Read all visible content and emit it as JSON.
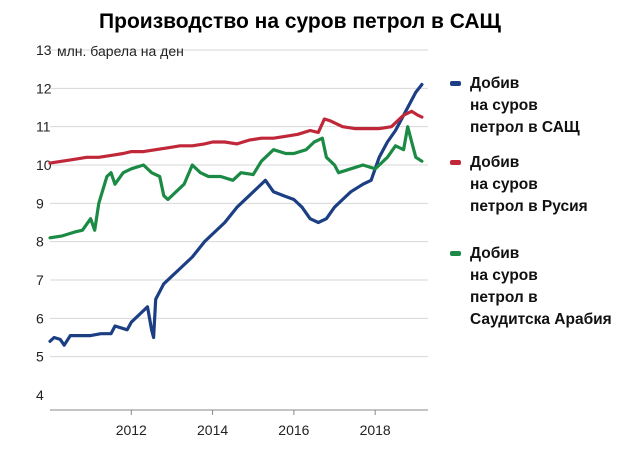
{
  "title": "Производство на суров петрол в САЩ",
  "chart_data": {
    "type": "line",
    "ylabel": "млн. барела на ден",
    "ylim": [
      4,
      13
    ],
    "yticks": [
      4,
      5,
      6,
      7,
      8,
      9,
      10,
      11,
      12,
      13
    ],
    "xlim": [
      2010,
      2019.3
    ],
    "xticks": [
      2012,
      2014,
      2016,
      2018
    ],
    "grid": "horizontal",
    "legend_position": "right",
    "series": [
      {
        "name": "Добив на суров петрол в САЩ",
        "legend_lines": [
          "Добив",
          "на суров",
          "петрол в САЩ"
        ],
        "color": "#1c3f84",
        "points": [
          [
            2010.0,
            5.4
          ],
          [
            2010.1,
            5.5
          ],
          [
            2010.25,
            5.45
          ],
          [
            2010.35,
            5.3
          ],
          [
            2010.5,
            5.55
          ],
          [
            2010.75,
            5.55
          ],
          [
            2011.0,
            5.55
          ],
          [
            2011.25,
            5.6
          ],
          [
            2011.5,
            5.6
          ],
          [
            2011.6,
            5.8
          ],
          [
            2011.9,
            5.7
          ],
          [
            2012.0,
            5.9
          ],
          [
            2012.2,
            6.1
          ],
          [
            2012.4,
            6.3
          ],
          [
            2012.5,
            5.7
          ],
          [
            2012.55,
            5.5
          ],
          [
            2012.6,
            6.5
          ],
          [
            2012.8,
            6.9
          ],
          [
            2013.0,
            7.1
          ],
          [
            2013.2,
            7.3
          ],
          [
            2013.5,
            7.6
          ],
          [
            2013.8,
            8.0
          ],
          [
            2014.0,
            8.2
          ],
          [
            2014.3,
            8.5
          ],
          [
            2014.6,
            8.9
          ],
          [
            2014.9,
            9.2
          ],
          [
            2015.1,
            9.4
          ],
          [
            2015.3,
            9.6
          ],
          [
            2015.5,
            9.3
          ],
          [
            2015.75,
            9.2
          ],
          [
            2016.0,
            9.1
          ],
          [
            2016.2,
            8.9
          ],
          [
            2016.4,
            8.6
          ],
          [
            2016.6,
            8.5
          ],
          [
            2016.8,
            8.6
          ],
          [
            2017.0,
            8.9
          ],
          [
            2017.2,
            9.1
          ],
          [
            2017.4,
            9.3
          ],
          [
            2017.7,
            9.5
          ],
          [
            2017.9,
            9.6
          ],
          [
            2018.1,
            10.2
          ],
          [
            2018.3,
            10.6
          ],
          [
            2018.5,
            10.9
          ],
          [
            2018.7,
            11.3
          ],
          [
            2018.85,
            11.6
          ],
          [
            2019.0,
            11.9
          ],
          [
            2019.15,
            12.1
          ]
        ]
      },
      {
        "name": "Добив на суров петрол в Русия",
        "legend_lines": [
          "Добив",
          "на суров",
          "петрол в Русия"
        ],
        "color": "#c0283a",
        "points": [
          [
            2010.0,
            10.05
          ],
          [
            2010.3,
            10.1
          ],
          [
            2010.6,
            10.15
          ],
          [
            2010.9,
            10.2
          ],
          [
            2011.2,
            10.2
          ],
          [
            2011.5,
            10.25
          ],
          [
            2011.8,
            10.3
          ],
          [
            2012.0,
            10.35
          ],
          [
            2012.3,
            10.35
          ],
          [
            2012.6,
            10.4
          ],
          [
            2012.9,
            10.45
          ],
          [
            2013.2,
            10.5
          ],
          [
            2013.5,
            10.5
          ],
          [
            2013.8,
            10.55
          ],
          [
            2014.0,
            10.6
          ],
          [
            2014.3,
            10.6
          ],
          [
            2014.6,
            10.55
          ],
          [
            2014.9,
            10.65
          ],
          [
            2015.2,
            10.7
          ],
          [
            2015.5,
            10.7
          ],
          [
            2015.8,
            10.75
          ],
          [
            2016.1,
            10.8
          ],
          [
            2016.4,
            10.9
          ],
          [
            2016.6,
            10.85
          ],
          [
            2016.75,
            11.2
          ],
          [
            2016.9,
            11.15
          ],
          [
            2017.2,
            11.0
          ],
          [
            2017.5,
            10.95
          ],
          [
            2017.8,
            10.95
          ],
          [
            2018.1,
            10.95
          ],
          [
            2018.4,
            11.0
          ],
          [
            2018.7,
            11.3
          ],
          [
            2018.9,
            11.4
          ],
          [
            2019.05,
            11.3
          ],
          [
            2019.15,
            11.25
          ]
        ]
      },
      {
        "name": "Добив на суров петрол в Саудитска Арабия",
        "legend_lines": [
          "Добив",
          "на суров",
          "петрол в",
          "Саудитска Арабия"
        ],
        "color": "#1a8a44",
        "points": [
          [
            2010.0,
            8.1
          ],
          [
            2010.3,
            8.15
          ],
          [
            2010.6,
            8.25
          ],
          [
            2010.8,
            8.3
          ],
          [
            2011.0,
            8.6
          ],
          [
            2011.1,
            8.3
          ],
          [
            2011.2,
            9.0
          ],
          [
            2011.4,
            9.7
          ],
          [
            2011.5,
            9.8
          ],
          [
            2011.6,
            9.5
          ],
          [
            2011.8,
            9.8
          ],
          [
            2012.0,
            9.9
          ],
          [
            2012.3,
            10.0
          ],
          [
            2012.5,
            9.8
          ],
          [
            2012.7,
            9.7
          ],
          [
            2012.8,
            9.2
          ],
          [
            2012.9,
            9.1
          ],
          [
            2013.1,
            9.3
          ],
          [
            2013.3,
            9.5
          ],
          [
            2013.5,
            10.0
          ],
          [
            2013.7,
            9.8
          ],
          [
            2013.9,
            9.7
          ],
          [
            2014.2,
            9.7
          ],
          [
            2014.5,
            9.6
          ],
          [
            2014.7,
            9.8
          ],
          [
            2015.0,
            9.75
          ],
          [
            2015.2,
            10.1
          ],
          [
            2015.5,
            10.4
          ],
          [
            2015.8,
            10.3
          ],
          [
            2016.0,
            10.3
          ],
          [
            2016.3,
            10.4
          ],
          [
            2016.5,
            10.6
          ],
          [
            2016.7,
            10.7
          ],
          [
            2016.8,
            10.2
          ],
          [
            2017.0,
            10.0
          ],
          [
            2017.1,
            9.8
          ],
          [
            2017.4,
            9.9
          ],
          [
            2017.7,
            10.0
          ],
          [
            2018.0,
            9.9
          ],
          [
            2018.3,
            10.2
          ],
          [
            2018.5,
            10.5
          ],
          [
            2018.7,
            10.4
          ],
          [
            2018.8,
            11.0
          ],
          [
            2018.9,
            10.6
          ],
          [
            2019.0,
            10.2
          ],
          [
            2019.15,
            10.1
          ]
        ]
      }
    ]
  }
}
